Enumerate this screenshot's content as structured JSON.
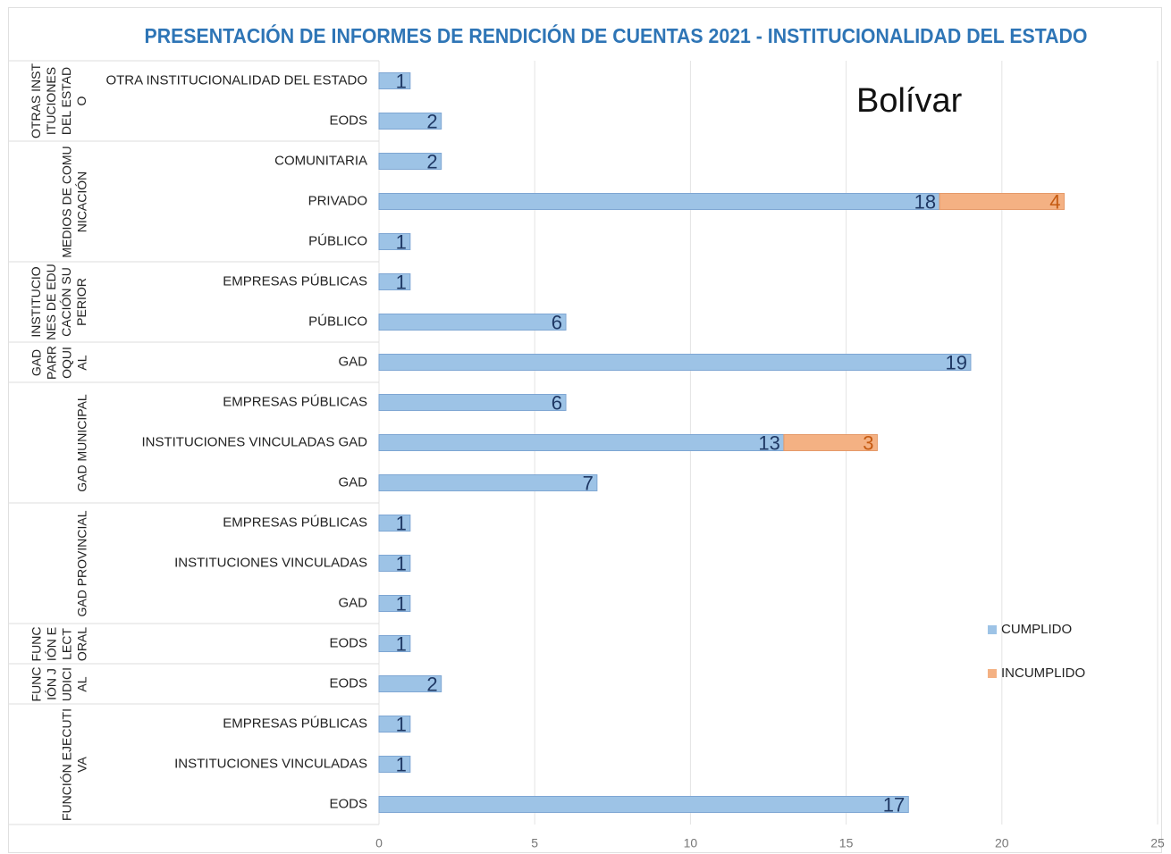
{
  "chart_data": {
    "type": "bar",
    "orientation": "horizontal",
    "stacked": true,
    "title": "PRESENTACIÓN DE INFORMES DE RENDICIÓN DE CUENTAS 2021 - INSTITUCIONALIDAD  DEL ESTADO",
    "annotation": "Bolívar",
    "groups": [
      {
        "name": "OTRAS INSTITUCIONES DEL ESTADO",
        "categories": [
          "OTRA INSTITUCIONALIDAD DEL ESTADO",
          "EODS"
        ]
      },
      {
        "name": "MEDIOS DE COMUNICACIÓN",
        "categories": [
          "COMUNITARIA",
          "PRIVADO",
          "PÚBLICO"
        ]
      },
      {
        "name": "INSTITUCIONES DE EDUCACIÓN SUPERIOR",
        "categories": [
          "EMPRESAS PÚBLICAS",
          "PÚBLICO"
        ]
      },
      {
        "name": "GAD PARROQUIAL",
        "categories": [
          "GAD"
        ]
      },
      {
        "name": "GAD MUNICIPAL",
        "categories": [
          "EMPRESAS PÚBLICAS",
          "INSTITUCIONES VINCULADAS GAD",
          "GAD"
        ]
      },
      {
        "name": "GAD PROVINCIAL",
        "categories": [
          "EMPRESAS PÚBLICAS",
          "INSTITUCIONES VINCULADAS",
          "GAD"
        ]
      },
      {
        "name": "FUNCIÓN ELECTORAL",
        "categories": [
          "EODS"
        ]
      },
      {
        "name": "FUNCIÓN JUDICIAL",
        "categories": [
          "EODS"
        ]
      },
      {
        "name": "FUNCIÓN EJECUTIVA",
        "categories": [
          "EMPRESAS PÚBLICAS",
          "INSTITUCIONES VINCULADAS",
          "EODS"
        ]
      }
    ],
    "series": [
      {
        "name": "CUMPLIDO",
        "color": "#9dc3e6",
        "label_color": "#1f3864",
        "values": [
          1,
          2,
          2,
          18,
          1,
          1,
          6,
          19,
          6,
          13,
          7,
          1,
          1,
          1,
          1,
          2,
          1,
          1,
          17
        ]
      },
      {
        "name": "INCUMPLIDO",
        "color": "#f4b183",
        "label_color": "#c55a11",
        "values": [
          null,
          null,
          null,
          4,
          null,
          null,
          null,
          null,
          null,
          3,
          null,
          null,
          null,
          null,
          null,
          null,
          null,
          null,
          null
        ]
      }
    ],
    "xlim": [
      0,
      25
    ],
    "xticks": [
      0,
      5,
      10,
      15,
      20,
      25
    ],
    "grid": true,
    "legend": "right"
  }
}
